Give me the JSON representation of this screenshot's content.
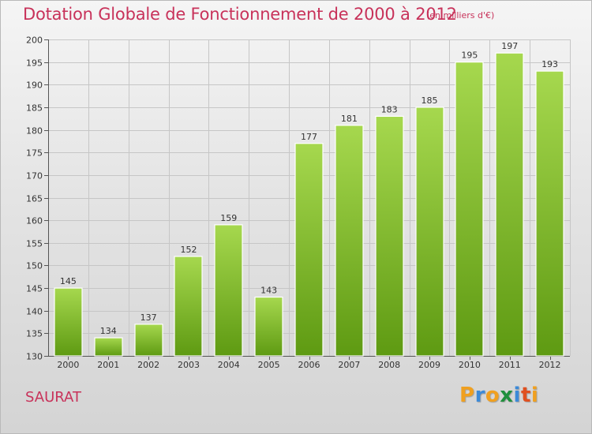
{
  "title": "Dotation Globale de Fonctionnement de 2000 à 2012",
  "subtitle": "(en milliers d'€)",
  "place": "SAURAT",
  "brand": {
    "letters": [
      "P",
      "r",
      "o",
      "x",
      "i",
      "t",
      "i"
    ],
    "colors": [
      "#f0a020",
      "#3c8ad8",
      "#f0a020",
      "#1f8f3c",
      "#3c8ad8",
      "#e05020",
      "#f0a020"
    ]
  },
  "colors": {
    "bar_light": "#a6d84e",
    "bar_dark": "#5e9a12",
    "accent": "#c8325a"
  },
  "chart_data": {
    "type": "bar",
    "title": "Dotation Globale de Fonctionnement de 2000 à 2012",
    "subtitle": "(en milliers d'€)",
    "xlabel": "",
    "ylabel": "",
    "categories": [
      "2000",
      "2001",
      "2002",
      "2003",
      "2004",
      "2005",
      "2006",
      "2007",
      "2008",
      "2009",
      "2010",
      "2011",
      "2012"
    ],
    "values": [
      145,
      134,
      137,
      152,
      159,
      143,
      177,
      181,
      183,
      185,
      195,
      197,
      193
    ],
    "ylim": [
      130,
      200
    ],
    "yticks": [
      130,
      135,
      140,
      145,
      150,
      155,
      160,
      165,
      170,
      175,
      180,
      185,
      190,
      195,
      200
    ],
    "grid": true
  }
}
